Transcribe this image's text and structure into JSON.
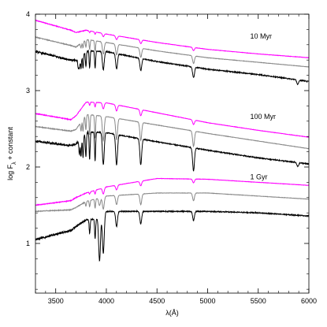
{
  "chart_data": {
    "type": "line",
    "title": "",
    "xlabel": "λ(Å)",
    "ylabel_main": "log F",
    "ylabel_sub": "λ",
    "ylabel_suffix": " + constant",
    "xlim": [
      3300,
      6000
    ],
    "ylim": [
      0.35,
      4.0
    ],
    "xticks": [
      3500,
      4000,
      4500,
      5000,
      5500,
      6000
    ],
    "yticks": [
      1,
      2,
      3,
      4
    ],
    "grid": false,
    "colors": {
      "magenta": "#ff00ff",
      "gray": "#888888",
      "black": "#000000"
    },
    "annotations": [
      {
        "text": "10 Myr",
        "x": 5420,
        "y": 3.68
      },
      {
        "text": "100 Myr",
        "x": 5420,
        "y": 2.63
      },
      {
        "text": "1 Gyr",
        "x": 5420,
        "y": 1.84
      }
    ],
    "lines": [
      {
        "x": [
          4101,
          4340,
          4861
        ],
        "depth": 0.03
      }
    ],
    "series": [
      {
        "group": "10 Myr",
        "color": "#ff00ff",
        "x": [
          3300,
          3650,
          3700,
          3800,
          4000,
          4500,
          5000,
          5500,
          6000
        ],
        "y": [
          3.92,
          3.79,
          3.76,
          3.79,
          3.74,
          3.63,
          3.54,
          3.48,
          3.43
        ],
        "lines": [
          [
            3835,
            0.02
          ],
          [
            3889,
            0.03
          ],
          [
            3970,
            0.04
          ],
          [
            4101,
            0.05
          ],
          [
            4340,
            0.05
          ],
          [
            4861,
            0.04
          ]
        ]
      },
      {
        "group": "10 Myr",
        "color": "#888888",
        "x": [
          3300,
          3650,
          3700,
          3800,
          4000,
          4500,
          5000,
          5500,
          6000
        ],
        "y": [
          3.7,
          3.59,
          3.57,
          3.67,
          3.63,
          3.52,
          3.43,
          3.37,
          3.31
        ],
        "lines": [
          [
            3750,
            0.06
          ],
          [
            3770,
            0.08
          ],
          [
            3798,
            0.1
          ],
          [
            3835,
            0.12
          ],
          [
            3889,
            0.14
          ],
          [
            3970,
            0.16
          ],
          [
            4101,
            0.14
          ],
          [
            4340,
            0.12
          ],
          [
            4861,
            0.1
          ]
        ]
      },
      {
        "group": "10 Myr",
        "color": "#000000",
        "x": [
          3300,
          3650,
          3700,
          3800,
          4000,
          4500,
          5000,
          5500,
          6000
        ],
        "y": [
          3.51,
          3.4,
          3.39,
          3.52,
          3.51,
          3.38,
          3.28,
          3.21,
          3.12
        ],
        "lines": [
          [
            3722,
            0.12
          ],
          [
            3734,
            0.14
          ],
          [
            3750,
            0.16
          ],
          [
            3770,
            0.18
          ],
          [
            3798,
            0.2
          ],
          [
            3835,
            0.22
          ],
          [
            3889,
            0.22
          ],
          [
            3970,
            0.24
          ],
          [
            4101,
            0.2
          ],
          [
            4340,
            0.16
          ],
          [
            4861,
            0.14
          ],
          [
            5890,
            0.06
          ]
        ]
      },
      {
        "group": "100 Myr",
        "color": "#ff00ff",
        "x": [
          3300,
          3650,
          3700,
          3800,
          4000,
          4500,
          5000,
          5500,
          6000
        ],
        "y": [
          2.7,
          2.62,
          2.67,
          2.85,
          2.84,
          2.71,
          2.58,
          2.48,
          2.39
        ],
        "lines": [
          [
            3835,
            0.04
          ],
          [
            3889,
            0.06
          ],
          [
            3970,
            0.08
          ],
          [
            4101,
            0.08
          ],
          [
            4340,
            0.08
          ],
          [
            4861,
            0.06
          ]
        ]
      },
      {
        "group": "100 Myr",
        "color": "#888888",
        "x": [
          3300,
          3650,
          3700,
          3800,
          4000,
          4500,
          5000,
          5500,
          6000
        ],
        "y": [
          2.53,
          2.47,
          2.49,
          2.69,
          2.66,
          2.55,
          2.44,
          2.34,
          2.24
        ],
        "lines": [
          [
            3750,
            0.12
          ],
          [
            3770,
            0.16
          ],
          [
            3798,
            0.2
          ],
          [
            3835,
            0.26
          ],
          [
            3889,
            0.3
          ],
          [
            3970,
            0.32
          ],
          [
            4101,
            0.28
          ],
          [
            4340,
            0.24
          ],
          [
            4861,
            0.2
          ]
        ]
      },
      {
        "group": "100 Myr",
        "color": "#000000",
        "x": [
          3300,
          3650,
          3700,
          3800,
          4000,
          4500,
          5000,
          5500,
          6000
        ],
        "y": [
          2.34,
          2.28,
          2.3,
          2.46,
          2.45,
          2.33,
          2.22,
          2.12,
          2.04
        ],
        "lines": [
          [
            3734,
            0.2
          ],
          [
            3750,
            0.24
          ],
          [
            3770,
            0.28
          ],
          [
            3798,
            0.32
          ],
          [
            3835,
            0.36
          ],
          [
            3889,
            0.38
          ],
          [
            3970,
            0.42
          ],
          [
            4101,
            0.4
          ],
          [
            4340,
            0.34
          ],
          [
            4861,
            0.3
          ],
          [
            5890,
            0.05
          ]
        ]
      },
      {
        "group": "1 Gyr",
        "color": "#ff00ff",
        "x": [
          3300,
          3650,
          3700,
          3800,
          4000,
          4500,
          5000,
          5500,
          6000
        ],
        "y": [
          1.5,
          1.56,
          1.6,
          1.66,
          1.74,
          1.85,
          1.84,
          1.8,
          1.76
        ],
        "lines": [
          [
            3835,
            0.03
          ],
          [
            3889,
            0.05
          ],
          [
            3970,
            0.08
          ],
          [
            4101,
            0.06
          ],
          [
            4340,
            0.06
          ],
          [
            4861,
            0.05
          ]
        ]
      },
      {
        "group": "1 Gyr",
        "color": "#888888",
        "x": [
          3300,
          3650,
          3700,
          3800,
          4000,
          4500,
          5000,
          5500,
          6000
        ],
        "y": [
          1.42,
          1.44,
          1.47,
          1.55,
          1.62,
          1.66,
          1.66,
          1.62,
          1.58
        ],
        "lines": [
          [
            3798,
            0.06
          ],
          [
            3835,
            0.08
          ],
          [
            3889,
            0.12
          ],
          [
            3933,
            0.1
          ],
          [
            3970,
            0.16
          ],
          [
            4101,
            0.12
          ],
          [
            4340,
            0.14
          ],
          [
            4861,
            0.1
          ]
        ]
      },
      {
        "group": "1 Gyr",
        "color": "#000000",
        "x": [
          3300,
          3650,
          3700,
          3800,
          3900,
          4000,
          4500,
          5000,
          5500,
          6000
        ],
        "y": [
          1.05,
          1.17,
          1.22,
          1.31,
          1.32,
          1.42,
          1.42,
          1.42,
          1.4,
          1.36
        ],
        "lines": [
          [
            3835,
            0.18
          ],
          [
            3889,
            0.26
          ],
          [
            3933,
            0.58
          ],
          [
            3970,
            0.52
          ],
          [
            4101,
            0.2
          ],
          [
            4340,
            0.16
          ],
          [
            4861,
            0.12
          ]
        ]
      }
    ]
  }
}
